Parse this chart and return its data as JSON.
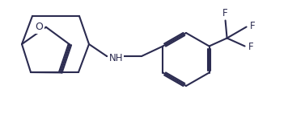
{
  "background": "#ffffff",
  "line_color": "#2b2b50",
  "line_width": 1.5,
  "font_size": 8.5,
  "fig_width": 3.56,
  "fig_height": 1.47,
  "dpi": 100,
  "xlim": [
    0.0,
    3.56
  ],
  "ylim": [
    0.0,
    1.47
  ]
}
